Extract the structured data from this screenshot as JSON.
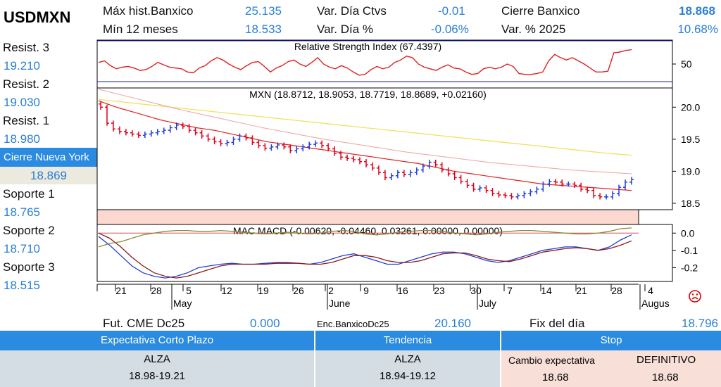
{
  "ticker": "USDMXN",
  "header": {
    "max_hist_label": "Máx hist.Banxico",
    "max_hist_value": "25.135",
    "var_dia_ctvs_label": "Var. Día Ctvs",
    "var_dia_ctvs_value": "-0.01",
    "cierre_banxico_label": "Cierre Banxico",
    "cierre_banxico_value": "18.868",
    "min12_label": "Mín 12 meses",
    "min12_value": "18.533",
    "var_dia_pct_label": "Var. Día %",
    "var_dia_pct_value": "-0.06%",
    "var_2025_label": "Var. % 2025",
    "var_2025_value": "10.68%"
  },
  "levels": {
    "resist3_label": "Resist. 3",
    "resist3_value": "19.210",
    "resist2_label": "Resist. 2",
    "resist2_value": "19.030",
    "resist1_label": "Resist. 1",
    "resist1_value": "18.980",
    "ny_label": "Cierre Nueva York",
    "ny_value": "18.869",
    "sop1_label": "Soporte 1",
    "sop1_value": "18.765",
    "sop2_label": "Soporte 2",
    "sop2_value": "18.710",
    "sop3_label": "Soporte 3",
    "sop3_value": "18.515"
  },
  "footer": {
    "fut_label": "Fut. CME Dc25",
    "fut_value": "0.000",
    "enc_label": "Enc.BanxicoDc25",
    "enc_value": "20.160",
    "fix_label": "Fix del día",
    "fix_value": "18.796"
  },
  "summary": {
    "expectativa_title": "Expectativa Corto Plazo",
    "expectativa_dir": "ALZA",
    "expectativa_range": "18.98-19.21",
    "tendencia_title": "Tendencia",
    "tendencia_dir": "ALZA",
    "tendencia_range": "18.94-19.12",
    "stop_title": "Stop",
    "cambio_label": "Cambio expectativa",
    "cambio_value": "18.68",
    "definitivo_label": "DEFINITIVO",
    "definitivo_value": "18.68"
  },
  "colors": {
    "up": "#1f3fd8",
    "down": "#e0001a",
    "accent": "#2b8be0",
    "ma_fast": "#e02020",
    "ma_mid": "#f0a8a8",
    "ma_slow": "#f2e060"
  },
  "chart_data": [
    {
      "type": "line",
      "title": "Relative Strength Index (67.4397)",
      "yticks": [
        50
      ],
      "ylim": [
        20,
        80
      ],
      "values": [
        52,
        54,
        48,
        44,
        46,
        47,
        45,
        42,
        43,
        47,
        52,
        49,
        46,
        45,
        44,
        40,
        39,
        45,
        48,
        54,
        58,
        55,
        50,
        46,
        43,
        48,
        52,
        53,
        47,
        40,
        45,
        48,
        53,
        55,
        50,
        47,
        52,
        58,
        50,
        46,
        44,
        48,
        45,
        40,
        36,
        37,
        43,
        47,
        44,
        46,
        52,
        55,
        60,
        58,
        50,
        46,
        44,
        42,
        46,
        49,
        45,
        44,
        40,
        37,
        38,
        44,
        46,
        44,
        46,
        50,
        47,
        38,
        37,
        37,
        38,
        40,
        54,
        62,
        58,
        55,
        58,
        54,
        50,
        45,
        40,
        40,
        41,
        64,
        65,
        67,
        68
      ]
    },
    {
      "type": "bar",
      "title": "MXN (18.8712, 18.9053, 18.7719, 18.8689, +0.02160)",
      "yticks": [
        18.5,
        19.0,
        19.5,
        20.0
      ],
      "ylim": [
        18.4,
        20.3
      ],
      "x_ticks": [
        "21",
        "28",
        "5",
        "12",
        "19",
        "26",
        "2",
        "9",
        "16",
        "23",
        "30",
        "7",
        "14",
        "21",
        "28",
        "4"
      ],
      "month_labels": [
        "May",
        "June",
        "July",
        "Augus"
      ],
      "closes": [
        20.0,
        19.75,
        19.66,
        19.62,
        19.6,
        19.58,
        19.56,
        19.58,
        19.6,
        19.62,
        19.64,
        19.68,
        19.72,
        19.7,
        19.64,
        19.6,
        19.55,
        19.5,
        19.46,
        19.43,
        19.45,
        19.5,
        19.55,
        19.52,
        19.45,
        19.4,
        19.36,
        19.38,
        19.41,
        19.38,
        19.32,
        19.35,
        19.38,
        19.42,
        19.44,
        19.4,
        19.35,
        19.28,
        19.22,
        19.2,
        19.18,
        19.15,
        19.1,
        19.05,
        18.98,
        18.9,
        18.93,
        18.98,
        18.95,
        18.98,
        19.02,
        19.08,
        19.14,
        19.1,
        19.02,
        18.96,
        18.9,
        18.84,
        18.78,
        18.72,
        18.74,
        18.7,
        18.65,
        18.63,
        18.62,
        18.6,
        18.62,
        18.65,
        18.68,
        18.72,
        18.8,
        18.84,
        18.83,
        18.8,
        18.8,
        18.78,
        18.72,
        18.7,
        18.62,
        18.6,
        18.6,
        18.65,
        18.75,
        18.83,
        18.87
      ],
      "ma_fast": [
        20.1,
        20.05,
        20.0,
        19.96,
        19.92,
        19.88,
        19.84,
        19.8,
        19.77,
        19.74,
        19.71,
        19.68,
        19.66,
        19.64,
        19.61,
        19.58,
        19.55,
        19.52,
        19.49,
        19.46,
        19.44,
        19.42,
        19.4,
        19.38,
        19.36,
        19.34,
        19.32,
        19.3,
        19.28,
        19.26,
        19.24,
        19.22,
        19.2,
        19.18,
        19.16,
        19.14,
        19.12,
        19.09,
        19.06,
        19.03,
        19.0,
        18.98,
        18.96,
        18.94,
        18.92,
        18.9,
        18.88,
        18.86,
        18.84,
        18.82,
        18.8,
        18.79,
        18.78,
        18.77,
        18.76,
        18.75,
        18.74,
        18.73,
        18.72,
        18.71,
        18.7
      ],
      "ma_mid": [
        20.28,
        20.2,
        20.12,
        20.04,
        19.96,
        19.89,
        19.82,
        19.75,
        19.68,
        19.62,
        19.56,
        19.5,
        19.45,
        19.4,
        19.35,
        19.3,
        19.26,
        19.22,
        19.18,
        19.14,
        19.11,
        19.08,
        19.05,
        19.02,
        19.0,
        18.98,
        18.96
      ],
      "ma_slow": [
        20.12,
        20.08,
        20.04,
        20.0,
        19.96,
        19.92,
        19.88,
        19.84,
        19.8,
        19.76,
        19.72,
        19.68,
        19.64,
        19.6,
        19.56,
        19.52,
        19.48,
        19.44,
        19.4,
        19.36,
        19.32,
        19.28,
        19.25
      ]
    },
    {
      "type": "line",
      "title": "MAC MACD (-0.00620, -0.04460, 0.03261, 0.00000, 0.00000)",
      "yticks": [
        0.0,
        -0.1,
        -0.2
      ],
      "ylim": [
        -0.28,
        0.05
      ],
      "series": [
        {
          "values": [
            -0.02,
            -0.07,
            -0.13,
            -0.19,
            -0.23,
            -0.25,
            -0.26,
            -0.25,
            -0.23,
            -0.2,
            -0.19,
            -0.18,
            -0.175,
            -0.18,
            -0.18,
            -0.175,
            -0.17,
            -0.17,
            -0.175,
            -0.18,
            -0.17,
            -0.15,
            -0.13,
            -0.12,
            -0.14,
            -0.16,
            -0.18,
            -0.18,
            -0.16,
            -0.14,
            -0.12,
            -0.11,
            -0.11,
            -0.12,
            -0.14,
            -0.16,
            -0.17,
            -0.16,
            -0.14,
            -0.12,
            -0.1,
            -0.09,
            -0.08,
            -0.08,
            -0.09,
            -0.1,
            -0.08,
            -0.04,
            -0.01
          ]
        },
        {
          "values": [
            0.0,
            -0.03,
            -0.08,
            -0.14,
            -0.19,
            -0.23,
            -0.25,
            -0.26,
            -0.25,
            -0.23,
            -0.21,
            -0.19,
            -0.18,
            -0.18,
            -0.18,
            -0.18,
            -0.175,
            -0.175,
            -0.175,
            -0.18,
            -0.18,
            -0.17,
            -0.15,
            -0.13,
            -0.13,
            -0.14,
            -0.16,
            -0.17,
            -0.17,
            -0.16,
            -0.14,
            -0.12,
            -0.115,
            -0.115,
            -0.13,
            -0.15,
            -0.16,
            -0.165,
            -0.15,
            -0.13,
            -0.11,
            -0.1,
            -0.09,
            -0.085,
            -0.09,
            -0.1,
            -0.09,
            -0.07,
            -0.045
          ]
        },
        {
          "values": [
            -0.08,
            -0.06,
            -0.05,
            -0.03,
            -0.01,
            0.0,
            0.01,
            0.015,
            0.015,
            0.01,
            0.01,
            0.015,
            0.01,
            0.005,
            0.0,
            -0.005,
            0.0,
            0.005,
            0.0,
            -0.005,
            0.0,
            0.01,
            0.015,
            0.01,
            -0.005,
            -0.01,
            -0.005,
            0.005,
            0.01,
            0.015,
            0.015,
            0.01,
            0.0,
            -0.005,
            -0.01,
            -0.005,
            0.005,
            0.01,
            0.015,
            0.015,
            0.01,
            0.005,
            0.0,
            -0.005,
            -0.005,
            0.0,
            0.01,
            0.025,
            0.03
          ]
        }
      ]
    }
  ]
}
